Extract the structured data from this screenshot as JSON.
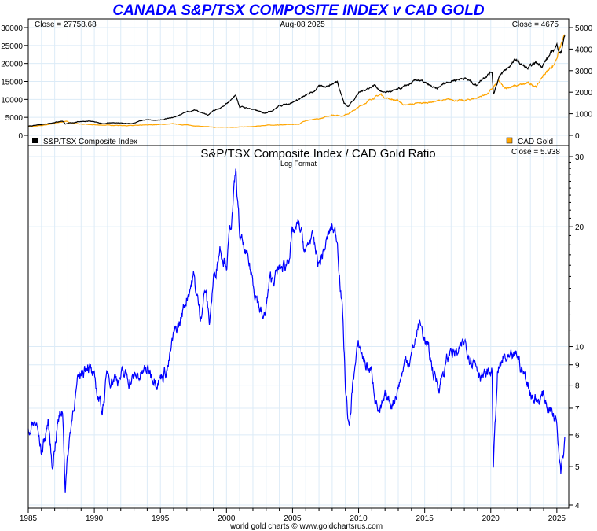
{
  "chart_data": [
    {
      "type": "line",
      "title": "CANADA S&P/TSX COMPOSITE INDEX v CAD GOLD",
      "date_label": "Aug-08  2025",
      "left_close": "Close = 27758.68",
      "right_close": "Close = 4675",
      "ylim_left": [
        0,
        30000
      ],
      "yticks_left": [
        0,
        5000,
        10000,
        15000,
        20000,
        25000,
        30000
      ],
      "ylim_right": [
        0,
        5000
      ],
      "yticks_right": [
        0,
        1000,
        2000,
        3000,
        4000,
        5000
      ],
      "legend": [
        {
          "name": "S&P/TSX Composite Index",
          "color": "#000000",
          "placement": "bottom-left"
        },
        {
          "name": "CAD Gold",
          "color": "#FFA500",
          "placement": "bottom-right"
        }
      ],
      "series": [
        {
          "name": "S&P/TSX Composite Index",
          "axis": "left",
          "color": "#000000",
          "x": [
            1985,
            1986,
            1987.6,
            1987.8,
            1988,
            1989,
            1989.6,
            1990.8,
            1991,
            1992,
            1992.8,
            1993.5,
            1994,
            1995,
            1996,
            1997,
            1997.7,
            1998.6,
            1999,
            1999.8,
            2000.7,
            2001,
            2001.7,
            2002,
            2002.8,
            2003.5,
            2004,
            2005,
            2006,
            2006.5,
            2007,
            2007.8,
            2008.4,
            2008.9,
            2009.2,
            2010,
            2011.2,
            2011.8,
            2012.5,
            2013,
            2014,
            2014.5,
            2015.9,
            2016.5,
            2017,
            2018,
            2018.9,
            2019.5,
            2020.1,
            2020.2,
            2020.6,
            2021,
            2021.9,
            2022.4,
            2022.8,
            2023.4,
            2023.9,
            2024.5,
            2025,
            2025.3,
            2025.6
          ],
          "y": [
            2500,
            3000,
            4000,
            3200,
            3300,
            3900,
            3950,
            3200,
            3500,
            3400,
            3200,
            4000,
            4300,
            4200,
            5000,
            6500,
            7000,
            5600,
            6700,
            8000,
            11200,
            8000,
            7500,
            7200,
            6200,
            7000,
            8200,
            9200,
            11000,
            12000,
            13500,
            14000,
            15000,
            9000,
            8000,
            11800,
            14000,
            12000,
            12200,
            12700,
            14500,
            15500,
            12800,
            14500,
            15200,
            16000,
            14000,
            16300,
            17800,
            11500,
            16000,
            17800,
            21000,
            19500,
            18500,
            20200,
            19500,
            22500,
            25000,
            23000,
            27759
          ]
        },
        {
          "name": "CAD Gold",
          "axis": "right",
          "color": "#FFA500",
          "x": [
            1985,
            1986,
            1987.8,
            1988.5,
            1989.5,
            1990,
            1991,
            1993,
            1994,
            1996,
            1997.5,
            1999,
            2001,
            2002,
            2003,
            2004,
            2005.5,
            2006,
            2007,
            2008,
            2008.8,
            2009.5,
            2010,
            2011,
            2011.7,
            2012,
            2013,
            2013.5,
            2014,
            2015,
            2016,
            2017,
            2018,
            2019,
            2019.8,
            2020.6,
            2021,
            2022,
            2022.8,
            2023.5,
            2024,
            2024.8,
            2025.6
          ],
          "y": [
            400,
            450,
            650,
            550,
            500,
            480,
            470,
            450,
            480,
            530,
            450,
            370,
            380,
            400,
            470,
            480,
            520,
            700,
            750,
            950,
            900,
            1100,
            1300,
            1700,
            1900,
            1750,
            1600,
            1400,
            1450,
            1500,
            1600,
            1650,
            1600,
            1750,
            1950,
            2500,
            2200,
            2300,
            2400,
            2300,
            2800,
            3300,
            4675
          ]
        }
      ]
    },
    {
      "type": "line",
      "title": "S&P/TSX Composite Index  /  CAD Gold Ratio",
      "subtitle": "Log Format",
      "close": "Close = 5.938",
      "yscale": "log",
      "ylim": [
        4,
        30
      ],
      "yticks": [
        4,
        5,
        6,
        7,
        8,
        9,
        10,
        20,
        30
      ],
      "xlim": [
        1985,
        2025.9
      ],
      "xticks": [
        1985,
        1990,
        1995,
        2000,
        2005,
        2010,
        2015,
        2020,
        2025
      ],
      "grid": true,
      "series": [
        {
          "name": "Ratio",
          "color": "#0000FF",
          "x": [
            1985,
            1985.6,
            1986,
            1986.5,
            1986.8,
            1987.2,
            1987.6,
            1987.8,
            1988.1,
            1988.5,
            1989,
            1989.5,
            1990,
            1990.6,
            1991,
            1992,
            1993,
            1994,
            1995,
            1995.6,
            1996,
            1996.5,
            1997,
            1997.5,
            1998,
            1998.4,
            1998.7,
            1999,
            1999.5,
            2000,
            2000.4,
            2000.7,
            2001,
            2001.4,
            2001.8,
            2002.3,
            2002.8,
            2003.3,
            2004,
            2004.5,
            2005,
            2005.5,
            2006,
            2006.4,
            2007,
            2007.5,
            2008,
            2008.4,
            2008.8,
            2009,
            2009.3,
            2009.6,
            2010,
            2010.6,
            2011,
            2011.6,
            2012,
            2012.6,
            2013,
            2013.6,
            2014,
            2014.6,
            2015,
            2015.5,
            2016,
            2016.6,
            2017,
            2017.6,
            2018,
            2018.6,
            2019,
            2019.6,
            2020.1,
            2020.2,
            2020.5,
            2021,
            2021.5,
            2022,
            2022.5,
            2023,
            2023.5,
            2024,
            2024.5,
            2025,
            2025.3,
            2025.6
          ],
          "y": [
            6.2,
            6.4,
            5.4,
            6.5,
            5.0,
            6.4,
            7.0,
            4.5,
            5.8,
            7.5,
            8.5,
            9.3,
            8.0,
            7.0,
            8.5,
            8.4,
            8.3,
            8.7,
            8.4,
            9.0,
            10.5,
            11.5,
            13.5,
            15.0,
            12.0,
            14.0,
            11.5,
            14.5,
            18.0,
            16.5,
            21.0,
            27.0,
            19.0,
            17.0,
            15.5,
            13.5,
            11.5,
            14.5,
            15.5,
            16.0,
            19.0,
            20.0,
            17.0,
            19.0,
            16.0,
            18.0,
            20.0,
            18.5,
            12.0,
            8.0,
            6.1,
            8.5,
            10.0,
            9.0,
            8.5,
            6.7,
            7.2,
            7.3,
            8.0,
            9.3,
            9.5,
            11.5,
            10.5,
            9.0,
            8.0,
            9.0,
            9.8,
            9.5,
            10.2,
            9.5,
            9.0,
            8.3,
            8.7,
            5.0,
            8.5,
            9.3,
            9.0,
            9.5,
            8.5,
            7.8,
            7.3,
            7.5,
            7.0,
            6.6,
            5.1,
            5.94
          ]
        }
      ]
    }
  ],
  "footer": "world gold charts © www.goldchartsrus.com"
}
